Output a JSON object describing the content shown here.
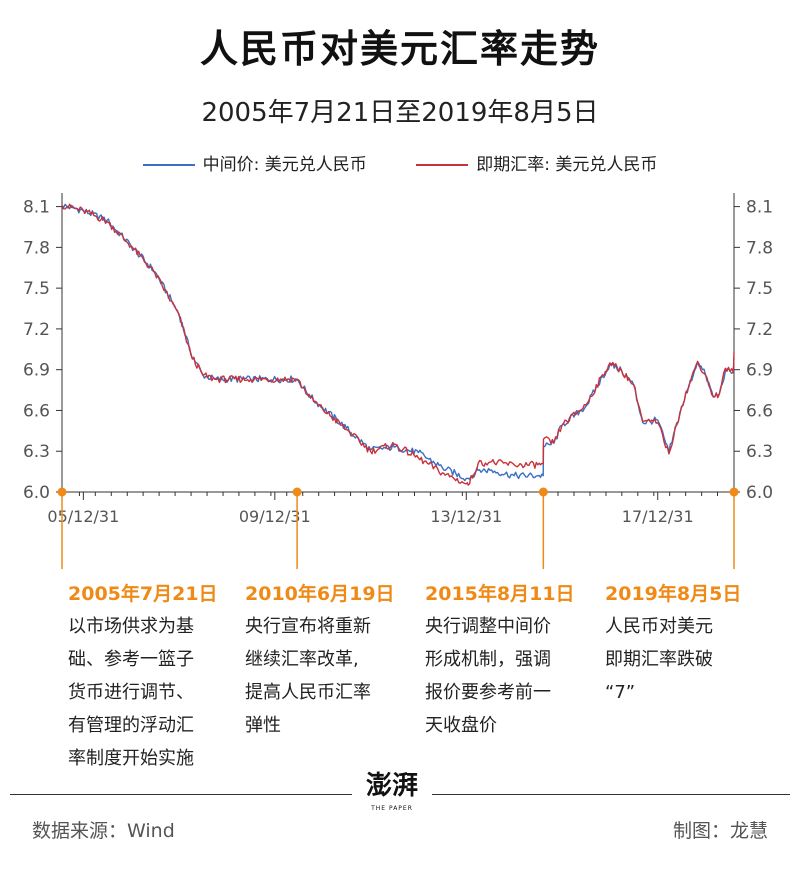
{
  "title": "人民币对美元汇率走势",
  "subtitle": "2005年7月21日至2019年8月5日",
  "legend": {
    "mid": "中间价: 美元兑人民币",
    "spot": "即期汇率: 美元兑人民币"
  },
  "colors": {
    "mid": "#3a6fc4",
    "spot": "#c8323a",
    "accent": "#ef8a17",
    "highlight": "#f7d23e"
  },
  "chart_data": {
    "type": "line",
    "x_start": "2005-07-21",
    "x_end": "2019-08-05",
    "ylim": [
      6.0,
      8.2
    ],
    "y_ticks": [
      "8.1",
      "7.8",
      "7.5",
      "7.2",
      "6.9",
      "6.6",
      "6.3",
      "6.0"
    ],
    "x_tick_labels": [
      "05/12/31",
      "09/12/31",
      "13/12/31",
      "17/12/31"
    ],
    "grid": false,
    "legend_position": "top",
    "series": [
      {
        "name": "中间价: 美元兑人民币",
        "x": [
          "2005-07-21",
          "2005-12-31",
          "2006-06-30",
          "2006-12-31",
          "2007-06-30",
          "2007-12-31",
          "2008-03-31",
          "2008-06-30",
          "2008-09-30",
          "2009-06-30",
          "2010-06-18",
          "2010-09-30",
          "2010-12-31",
          "2011-06-30",
          "2011-12-31",
          "2012-06-30",
          "2012-12-31",
          "2013-06-30",
          "2013-12-31",
          "2014-01-15",
          "2014-03-31",
          "2014-06-30",
          "2014-12-31",
          "2015-06-30",
          "2015-08-10",
          "2015-08-12",
          "2015-10-31",
          "2015-12-31",
          "2016-06-30",
          "2016-12-31",
          "2017-03-31",
          "2017-06-30",
          "2017-09-08",
          "2017-12-31",
          "2018-03-26",
          "2018-06-30",
          "2018-10-31",
          "2018-12-31",
          "2019-02-28",
          "2019-04-15",
          "2019-05-31",
          "2019-07-31",
          "2019-08-05"
        ],
        "y": [
          8.11,
          8.07,
          8.0,
          7.81,
          7.62,
          7.31,
          7.02,
          6.86,
          6.83,
          6.83,
          6.83,
          6.7,
          6.62,
          6.47,
          6.31,
          6.33,
          6.29,
          6.18,
          6.1,
          6.1,
          6.16,
          6.16,
          6.12,
          6.12,
          6.12,
          6.33,
          6.36,
          6.49,
          6.63,
          6.94,
          6.89,
          6.79,
          6.51,
          6.53,
          6.29,
          6.62,
          6.96,
          6.86,
          6.7,
          6.72,
          6.89,
          6.88,
          6.99
        ]
      },
      {
        "name": "即期汇率: 美元兑人民币",
        "x": [
          "2005-07-21",
          "2005-12-31",
          "2006-06-30",
          "2006-12-31",
          "2007-06-30",
          "2007-12-31",
          "2008-03-31",
          "2008-06-30",
          "2008-09-30",
          "2009-06-30",
          "2010-06-18",
          "2010-09-30",
          "2010-12-31",
          "2011-06-30",
          "2011-12-31",
          "2012-06-30",
          "2012-12-31",
          "2013-06-30",
          "2013-12-31",
          "2014-01-15",
          "2014-03-31",
          "2014-06-30",
          "2014-12-31",
          "2015-06-30",
          "2015-08-10",
          "2015-08-12",
          "2015-10-31",
          "2015-12-31",
          "2016-06-30",
          "2016-12-31",
          "2017-03-31",
          "2017-06-30",
          "2017-09-08",
          "2017-12-31",
          "2018-03-26",
          "2018-06-30",
          "2018-10-31",
          "2018-12-31",
          "2019-02-28",
          "2019-04-15",
          "2019-05-31",
          "2019-07-31",
          "2019-08-05"
        ],
        "y": [
          8.11,
          8.07,
          7.99,
          7.81,
          7.61,
          7.3,
          7.01,
          6.86,
          6.83,
          6.83,
          6.83,
          6.69,
          6.61,
          6.46,
          6.3,
          6.35,
          6.25,
          6.14,
          6.06,
          6.05,
          6.21,
          6.22,
          6.2,
          6.2,
          6.21,
          6.39,
          6.36,
          6.49,
          6.64,
          6.95,
          6.89,
          6.79,
          6.52,
          6.51,
          6.28,
          6.63,
          6.96,
          6.86,
          6.7,
          6.72,
          6.91,
          6.88,
          7.03
        ]
      }
    ]
  },
  "events": [
    {
      "date": "2005年7月21日",
      "lines": [
        "以市场供求为基",
        "础、参考一篮子",
        "货币进行调节、",
        "有管理的浮动汇",
        "率制度开始实施"
      ]
    },
    {
      "date": "2010年6月19日",
      "lines": [
        "央行宣布将重新",
        "继续汇率改革,",
        "提高人民币汇率",
        "弹性"
      ]
    },
    {
      "date": "2015年8月11日",
      "lines": [
        "央行调整中间价",
        "形成机制，强调",
        "报价要参考前一",
        "天收盘价"
      ]
    },
    {
      "date": "2019年8月5日",
      "lines": [
        "人民币对美元",
        "即期汇率跌破",
        "“7”"
      ]
    }
  ],
  "footer": {
    "logo_text": "澎湃",
    "logo_sub": "THE PAPER",
    "source": "数据来源：Wind",
    "author": "制图：龙慧"
  }
}
